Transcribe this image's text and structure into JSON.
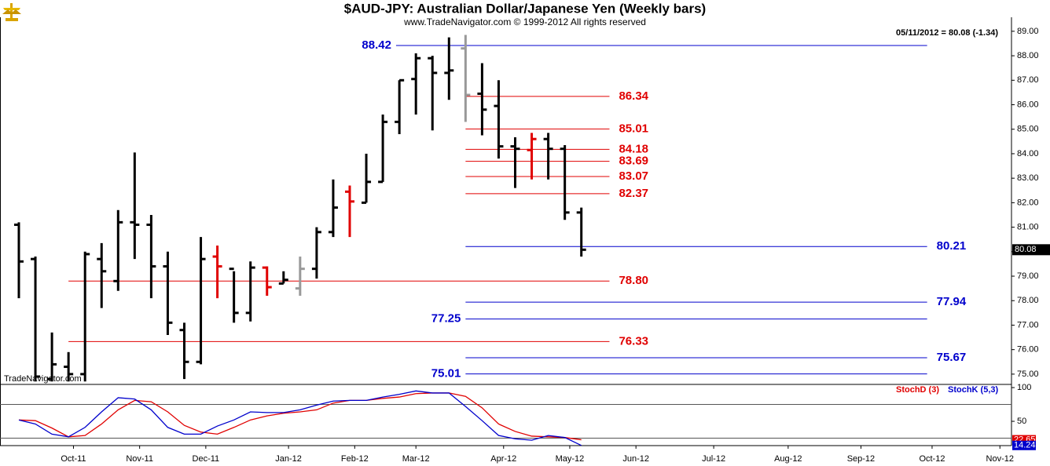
{
  "chart_data": [
    {
      "type": "ohlc",
      "title": "$AUD-JPY: Australian Dollar/Japanese Yen (Weekly bars)",
      "subtitle": "www.TradeNavigator.com © 1999-2012 All rights reserved",
      "annotation": "05/11/2012 = 80.08 (-1.34)",
      "watermark": "TradeNavigator.com",
      "open": [
        81.1,
        79.7,
        74.8,
        75.3,
        75.0,
        79.7,
        78.8,
        81.2,
        81.1,
        79.4,
        76.8,
        75.5,
        79.8,
        79.3,
        77.5,
        79.35,
        78.7,
        78.5,
        79.3,
        80.8,
        82.45,
        82.0,
        82.85,
        85.3,
        87.05,
        87.9,
        87.3,
        88.3,
        86.45,
        85.95,
        84.3,
        84.15,
        84.6,
        84.2,
        81.6
      ],
      "high": [
        81.2,
        79.8,
        76.7,
        75.9,
        80.0,
        80.35,
        81.7,
        84.05,
        81.5,
        80.0,
        77.1,
        80.6,
        80.25,
        79.2,
        79.6,
        79.4,
        79.2,
        79.8,
        81.0,
        82.95,
        82.7,
        84.0,
        85.6,
        87.0,
        88.1,
        88.0,
        88.75,
        88.85,
        87.7,
        87.0,
        84.67,
        84.85,
        84.85,
        84.35,
        81.8
      ],
      "low": [
        78.1,
        74.7,
        74.7,
        74.7,
        74.7,
        77.7,
        78.4,
        79.7,
        78.1,
        76.6,
        74.8,
        75.4,
        78.1,
        77.1,
        77.15,
        78.2,
        78.7,
        78.2,
        78.9,
        80.6,
        80.6,
        82.0,
        82.85,
        84.8,
        85.6,
        84.95,
        86.2,
        85.3,
        84.75,
        83.8,
        82.6,
        82.95,
        82.95,
        81.3,
        79.8
      ],
      "close": [
        79.6,
        74.9,
        75.4,
        75.0,
        79.9,
        79.2,
        81.2,
        81.1,
        79.4,
        77.1,
        75.5,
        79.7,
        79.4,
        77.5,
        79.35,
        78.55,
        78.85,
        79.3,
        80.8,
        81.8,
        82.05,
        82.85,
        85.3,
        87.0,
        87.9,
        87.3,
        87.4,
        86.4,
        85.8,
        84.3,
        84.2,
        84.6,
        84.2,
        81.6,
        80.08
      ],
      "colors": [
        "#000000",
        "#000000",
        "#000000",
        "#000000",
        "#000000",
        "#000000",
        "#000000",
        "#000000",
        "#000000",
        "#000000",
        "#000000",
        "#000000",
        "#e00000",
        "#000000",
        "#000000",
        "#e00000",
        "#000000",
        "#999999",
        "#000000",
        "#000000",
        "#e00000",
        "#000000",
        "#000000",
        "#000000",
        "#000000",
        "#000000",
        "#000000",
        "#999999",
        "#000000",
        "#000000",
        "#000000",
        "#e00000",
        "#000000",
        "#000000",
        "#000000"
      ],
      "last_price": {
        "value": 80.08,
        "label": "80.08"
      },
      "levels": [
        {
          "value": 88.42,
          "label": "88.42",
          "color": "#0000cc",
          "x_from": 22.8,
          "x_to": 54.9,
          "label_side": "left"
        },
        {
          "value": 86.34,
          "label": "86.34",
          "color": "#e00000",
          "x_from": 27,
          "x_to": 35.7,
          "label_side": "right"
        },
        {
          "value": 85.01,
          "label": "85.01",
          "color": "#e00000",
          "x_from": 27,
          "x_to": 35.7,
          "label_side": "right"
        },
        {
          "value": 84.18,
          "label": "84.18",
          "color": "#e00000",
          "x_from": 27,
          "x_to": 35.7,
          "label_side": "right"
        },
        {
          "value": 83.69,
          "label": "83.69",
          "color": "#e00000",
          "x_from": 27,
          "x_to": 35.7,
          "label_side": "right"
        },
        {
          "value": 83.07,
          "label": "83.07",
          "color": "#e00000",
          "x_from": 27,
          "x_to": 35.7,
          "label_side": "right"
        },
        {
          "value": 82.37,
          "label": "82.37",
          "color": "#e00000",
          "x_from": 27,
          "x_to": 35.7,
          "label_side": "right"
        },
        {
          "value": 80.21,
          "label": "80.21",
          "color": "#0000cc",
          "x_from": 27,
          "x_to": 54.9,
          "label_side": "right"
        },
        {
          "value": 78.8,
          "label": "78.80",
          "color": "#e00000",
          "x_from": 3,
          "x_to": 35.7,
          "label_side": "right"
        },
        {
          "value": 77.94,
          "label": "77.94",
          "color": "#0000cc",
          "x_from": 27,
          "x_to": 54.9,
          "label_side": "right"
        },
        {
          "value": 77.25,
          "label": "77.25",
          "color": "#0000cc",
          "x_from": 27,
          "x_to": 54.9,
          "label_side": "left"
        },
        {
          "value": 76.33,
          "label": "76.33",
          "color": "#e00000",
          "x_from": 3,
          "x_to": 35.7,
          "label_side": "right"
        },
        {
          "value": 75.67,
          "label": "75.67",
          "color": "#0000cc",
          "x_from": 27,
          "x_to": 54.9,
          "label_side": "right"
        },
        {
          "value": 75.01,
          "label": "75.01",
          "color": "#0000cc",
          "x_from": 27,
          "x_to": 54.9,
          "label_side": "left"
        }
      ],
      "xlim": [
        -1.14,
        60
      ],
      "ylim": [
        74.58,
        89.38
      ],
      "yticks": [
        {
          "value": 75,
          "label": "75.00"
        },
        {
          "value": 76,
          "label": "76.00"
        },
        {
          "value": 77,
          "label": "77.00"
        },
        {
          "value": 78,
          "label": "78.00"
        },
        {
          "value": 79,
          "label": "79.00"
        },
        {
          "value": 80,
          "label": "80.00"
        },
        {
          "value": 81,
          "label": "81.00"
        },
        {
          "value": 82,
          "label": "82.00"
        },
        {
          "value": 83,
          "label": "83.00"
        },
        {
          "value": 84,
          "label": "84.00"
        },
        {
          "value": 85,
          "label": "85.00"
        },
        {
          "value": 86,
          "label": "86.00"
        },
        {
          "value": 87,
          "label": "87.00"
        },
        {
          "value": 88,
          "label": "88.00"
        },
        {
          "value": 89,
          "label": "89.00"
        }
      ]
    },
    {
      "type": "line",
      "xlim": [
        -1.14,
        60
      ],
      "ylim": [
        14,
        104.7
      ],
      "yticks": [
        50,
        100
      ],
      "reference_lines": [
        75,
        25
      ],
      "xticks": [
        {
          "value": 3.3,
          "label": "Oct-11"
        },
        {
          "value": 7.3,
          "label": "Nov-11"
        },
        {
          "value": 11.3,
          "label": "Dec-11"
        },
        {
          "value": 16.3,
          "label": "Jan-12"
        },
        {
          "value": 20.3,
          "label": "Feb-12"
        },
        {
          "value": 24.0,
          "label": "Mar-12"
        },
        {
          "value": 29.3,
          "label": "Apr-12"
        },
        {
          "value": 33.3,
          "label": "May-12"
        },
        {
          "value": 37.3,
          "label": "Jun-12"
        },
        {
          "value": 42.0,
          "label": "Jul-12"
        },
        {
          "value": 46.5,
          "label": "Aug-12"
        },
        {
          "value": 50.9,
          "label": "Sep-12"
        },
        {
          "value": 55.2,
          "label": "Oct-12"
        },
        {
          "value": 59.3,
          "label": "Nov-12"
        }
      ],
      "series": [
        {
          "name": "StochD (3)",
          "color": "#e00000",
          "last_label": "22.65",
          "values": [
            52,
            51,
            40,
            27,
            29,
            46,
            67,
            81,
            79,
            64,
            44,
            34,
            31,
            41,
            52,
            58,
            62,
            64,
            67,
            77,
            81,
            81,
            84,
            86,
            91,
            92,
            92,
            87,
            70,
            46,
            35,
            28,
            27,
            26,
            22.65
          ]
        },
        {
          "name": "StochK (5,3)",
          "color": "#0000cc",
          "last_label": "14.24",
          "values": [
            52,
            46,
            31,
            27,
            41,
            64,
            85,
            83,
            67,
            41,
            31,
            31,
            43,
            52,
            64,
            63,
            63,
            67,
            74,
            80,
            81,
            81,
            86,
            90,
            95,
            92,
            92,
            72,
            51,
            29,
            24,
            22,
            29,
            26,
            14.24
          ]
        }
      ]
    }
  ]
}
